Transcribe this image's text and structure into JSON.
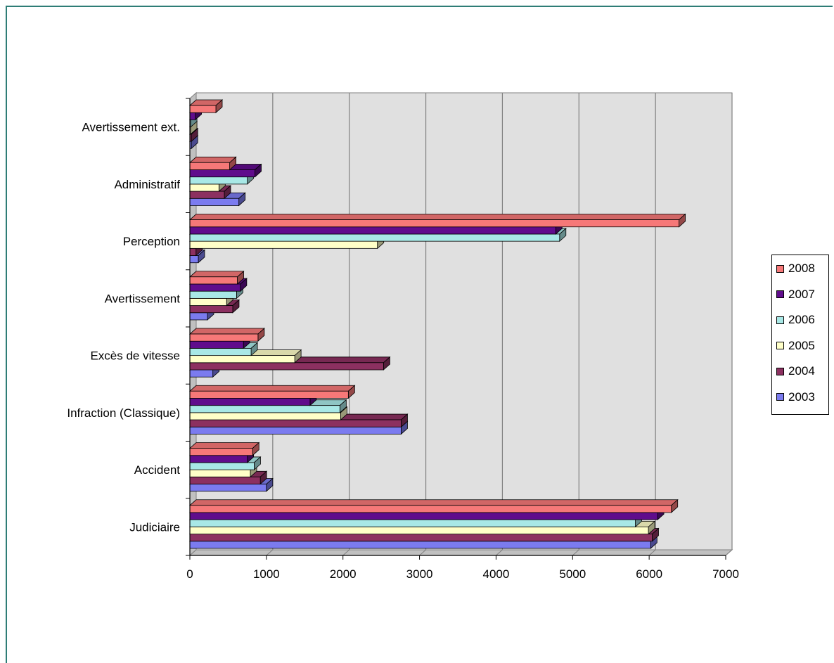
{
  "chart_data": {
    "type": "bar",
    "orientation": "horizontal",
    "style": "3d-clustered",
    "categories": [
      "Judiciaire",
      "Accident",
      "Infraction (Classique)",
      "Excès de vitesse",
      "Avertissement",
      "Perception",
      "Administratif",
      "Avertissement ext."
    ],
    "series": [
      {
        "name": "2003",
        "color": "#7b7bef",
        "values": [
          6020,
          1000,
          2760,
          300,
          230,
          110,
          640,
          20
        ]
      },
      {
        "name": "2004",
        "color": "#8c3060",
        "values": [
          6040,
          920,
          2760,
          2530,
          560,
          80,
          450,
          20
        ]
      },
      {
        "name": "2005",
        "color": "#ffffc8",
        "values": [
          5990,
          790,
          1970,
          1370,
          480,
          2450,
          380,
          10
        ]
      },
      {
        "name": "2006",
        "color": "#a8e8e6",
        "values": [
          5820,
          840,
          1960,
          800,
          610,
          4830,
          750,
          10
        ]
      },
      {
        "name": "2007",
        "color": "#600c8c",
        "values": [
          6110,
          750,
          1570,
          700,
          660,
          4780,
          850,
          70
        ]
      },
      {
        "name": "2008",
        "color": "#f67878",
        "values": [
          6290,
          820,
          2070,
          890,
          620,
          6390,
          520,
          340
        ]
      }
    ],
    "xlim": [
      0,
      7000
    ],
    "xticks": [
      "0",
      "1000",
      "2000",
      "3000",
      "4000",
      "5000",
      "6000",
      "7000"
    ],
    "xgrid": true,
    "legend_position": "right",
    "title": "",
    "xlabel": "",
    "ylabel": ""
  }
}
